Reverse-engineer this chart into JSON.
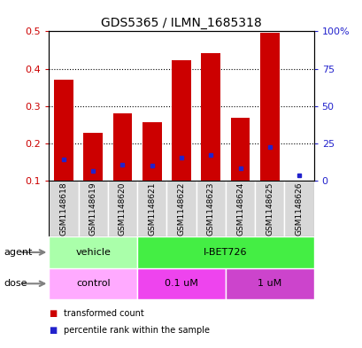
{
  "title": "GDS5365 / ILMN_1685318",
  "samples": [
    "GSM1148618",
    "GSM1148619",
    "GSM1148620",
    "GSM1148621",
    "GSM1148622",
    "GSM1148623",
    "GSM1148624",
    "GSM1148625",
    "GSM1148626"
  ],
  "red_values": [
    0.37,
    0.228,
    0.28,
    0.256,
    0.422,
    0.442,
    0.27,
    0.496,
    0.102
  ],
  "blue_values": [
    0.157,
    0.128,
    0.143,
    0.14,
    0.163,
    0.17,
    0.135,
    0.19,
    0.114
  ],
  "ylim_left": [
    0.1,
    0.5
  ],
  "ylim_right": [
    0,
    100
  ],
  "yticks_left": [
    0.1,
    0.2,
    0.3,
    0.4,
    0.5
  ],
  "yticks_right": [
    0,
    25,
    50,
    75,
    100
  ],
  "ytick_labels_right": [
    "0",
    "25",
    "50",
    "75",
    "100%"
  ],
  "bar_color_red": "#cc0000",
  "bar_color_blue": "#2222cc",
  "agent_labels": [
    "vehicle",
    "I-BET726"
  ],
  "agent_colors": [
    "#aaffaa",
    "#44ee44"
  ],
  "dose_labels": [
    "control",
    "0.1 uM",
    "1 uM"
  ],
  "dose_colors": [
    "#ffaaff",
    "#ee44ee",
    "#cc44cc"
  ],
  "legend_red": "transformed count",
  "legend_blue": "percentile rank within the sample",
  "sample_bg_color": "#d8d8d8",
  "chart_bg_color": "#ffffff"
}
